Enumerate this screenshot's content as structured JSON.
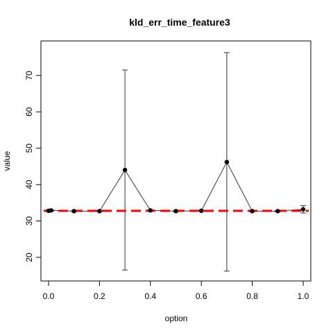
{
  "chart_data": {
    "type": "line",
    "title": "kld_err_time_feature3",
    "xlabel": "option",
    "ylabel": "value",
    "xlim": [
      -0.03,
      1.03
    ],
    "ylim": [
      13.5,
      79.5
    ],
    "x_ticks": [
      0.0,
      0.2,
      0.4,
      0.6,
      0.8,
      1.0
    ],
    "x_tick_labels": [
      "0.0",
      "0.2",
      "0.4",
      "0.6",
      "0.8",
      "1.0"
    ],
    "y_ticks": [
      20,
      30,
      40,
      50,
      60,
      70
    ],
    "y_tick_labels": [
      "20",
      "30",
      "40",
      "50",
      "60",
      "70"
    ],
    "grid": false,
    "series": [
      {
        "color": "#000000",
        "x": [
          0.0,
          0.01,
          0.1,
          0.2,
          0.3,
          0.4,
          0.5,
          0.6,
          0.7,
          0.8,
          0.9,
          1.0
        ],
        "y": [
          32.8,
          32.9,
          32.7,
          32.7,
          44.0,
          32.9,
          32.7,
          32.8,
          46.2,
          32.7,
          32.7,
          33.2
        ],
        "err_low": [
          32.6,
          32.7,
          32.5,
          32.5,
          16.5,
          32.7,
          32.5,
          32.6,
          16.2,
          32.5,
          32.5,
          32.2
        ],
        "err_high": [
          33.0,
          33.1,
          32.9,
          32.9,
          71.5,
          33.1,
          32.9,
          33.0,
          76.3,
          32.9,
          32.9,
          34.2
        ]
      }
    ],
    "reference_line": {
      "y": 32.8,
      "color": "#ff0000",
      "style": "dashed"
    }
  }
}
